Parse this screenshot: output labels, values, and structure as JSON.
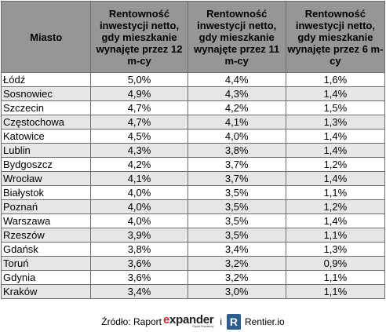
{
  "table": {
    "headers": [
      "Miasto",
      "Rentowność inwestycji netto, gdy mieszkanie wynajęte przez 12 m-cy",
      "Rentowność inwestycji netto, gdy mieszkanie wynajęte przez 11 m-cy",
      "Rentowność inwestycji netto, gdy mieszkanie wynajęte przez 6 m-cy"
    ],
    "rows": [
      [
        "Łódź",
        "5,0%",
        "4,4%",
        "1,6%"
      ],
      [
        "Sosnowiec",
        "4,9%",
        "4,3%",
        "1,4%"
      ],
      [
        "Szczecin",
        "4,7%",
        "4,2%",
        "1,5%"
      ],
      [
        "Częstochowa",
        "4,7%",
        "4,1%",
        "1,3%"
      ],
      [
        "Katowice",
        "4,5%",
        "4,0%",
        "1,4%"
      ],
      [
        "Lublin",
        "4,3%",
        "3,8%",
        "1,4%"
      ],
      [
        "Bydgoszcz",
        "4,2%",
        "3,7%",
        "1,2%"
      ],
      [
        "Wrocław",
        "4,1%",
        "3,7%",
        "1,4%"
      ],
      [
        "Białystok",
        "4,0%",
        "3,5%",
        "1,1%"
      ],
      [
        "Poznań",
        "4,0%",
        "3,5%",
        "1,2%"
      ],
      [
        "Warszawa",
        "4,0%",
        "3,5%",
        "1,4%"
      ],
      [
        "Rzeszów",
        "3,9%",
        "3,5%",
        "1,1%"
      ],
      [
        "Gdańsk",
        "3,8%",
        "3,4%",
        "1,3%"
      ],
      [
        "Toruń",
        "3,6%",
        "3,2%",
        "0,9%"
      ],
      [
        "Gdynia",
        "3,6%",
        "3,2%",
        "1,1%"
      ],
      [
        "Kraków",
        "3,4%",
        "3,0%",
        "1,1%"
      ]
    ]
  },
  "footer": {
    "source_label": "Źródło: Raport",
    "expander_e": "e",
    "expander_rest": "xpander",
    "expander_sub": "Expert Finansowy",
    "conjunction": "i",
    "rentier_icon": "R",
    "rentier_label": "Rentier.io"
  },
  "colors": {
    "header_bg": "#969696",
    "row_alt_bg": "#e6e6e6",
    "expander_red": "#d2232a",
    "rentier_blue": "#2d5c8f"
  }
}
